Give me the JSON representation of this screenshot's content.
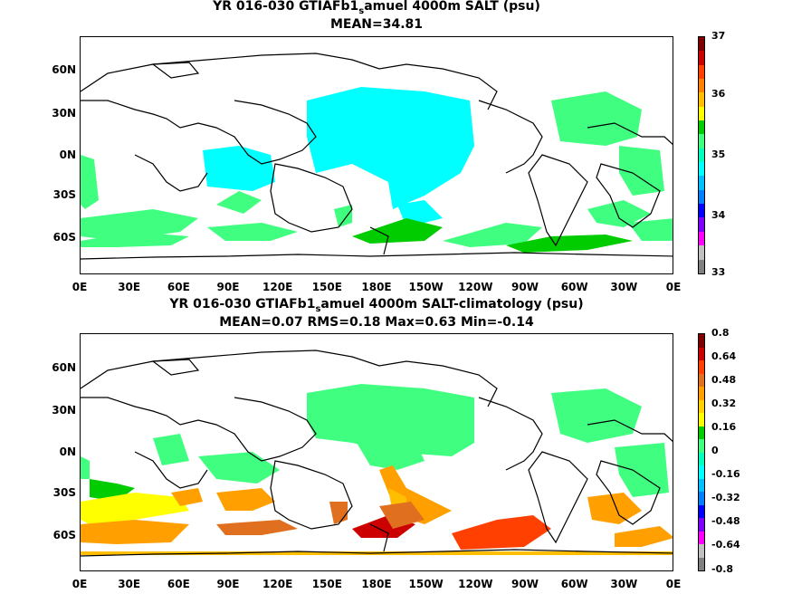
{
  "panels": [
    {
      "title_pre": "YR 016-030 GTIAFb1",
      "title_sub": "s",
      "title_post": "amuel 4000m SALT (psu)",
      "subtitle": "MEAN=34.81",
      "colorbar_labels": [
        "37",
        "36",
        "35",
        "34",
        "33"
      ]
    },
    {
      "title_pre": "YR 016-030 GTIAFb1",
      "title_sub": "s",
      "title_post": "amuel 4000m SALT-climatology (psu)",
      "subtitle": "MEAN=0.07   RMS=0.18   Max=0.63   Min=-0.14",
      "colorbar_labels": [
        "0.8",
        "0.64",
        "0.48",
        "0.32",
        "0.16",
        "0",
        "-0.16",
        "-0.32",
        "-0.48",
        "-0.64",
        "-0.8"
      ]
    }
  ],
  "lat_labels": [
    "60N",
    "30N",
    "0N",
    "30S",
    "60S"
  ],
  "lon_labels": [
    "0E",
    "30E",
    "60E",
    "90E",
    "120E",
    "150E",
    "180E",
    "150W",
    "120W",
    "90W",
    "60W",
    "30W",
    "0E"
  ],
  "colors": {
    "cb1": [
      "#800000",
      "#cc0000",
      "#ff4000",
      "#ff8000",
      "#ffbf00",
      "#ffff00",
      "#00cc00",
      "#40ff80",
      "#00ffbf",
      "#00ffff",
      "#00bfff",
      "#0080ff",
      "#0000ff",
      "#8000ff",
      "#ff00ff",
      "#c0c0c0",
      "#808080"
    ],
    "cb2": [
      "#800000",
      "#cc0000",
      "#ff4000",
      "#e07020",
      "#ffa000",
      "#ffd000",
      "#ffff00",
      "#00cc00",
      "#40ff80",
      "#00ffbf",
      "#00ffff",
      "#00bfff",
      "#0080ff",
      "#0000ff",
      "#8000ff",
      "#ff00ff",
      "#c0c0c0",
      "#808080"
    ]
  }
}
